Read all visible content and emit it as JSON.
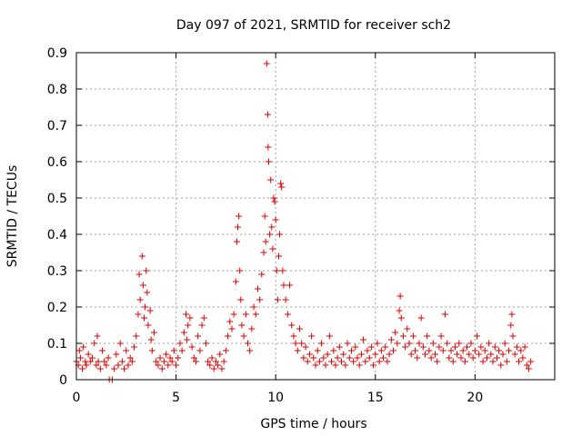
{
  "chart_data": {
    "type": "scatter",
    "title": "Day 097 of 2021, SRMTID for receiver sch2",
    "xlabel": "GPS time / hours",
    "ylabel": "SRMTID / TECUs",
    "xlim": [
      0,
      24
    ],
    "ylim": [
      0,
      0.9
    ],
    "xticks": [
      0,
      5,
      10,
      15,
      20
    ],
    "yticks": [
      0,
      0.1,
      0.2,
      0.3,
      0.4,
      0.5,
      0.6,
      0.7,
      0.8,
      0.9
    ],
    "grid": true,
    "marker": "+",
    "series": [
      {
        "name": "sch2",
        "color": "#e00000",
        "points": [
          [
            0.0,
            0.05
          ],
          [
            0.1,
            0.04
          ],
          [
            0.15,
            0.08
          ],
          [
            0.2,
            0.06
          ],
          [
            0.3,
            0.03
          ],
          [
            0.35,
            0.09
          ],
          [
            0.45,
            0.05
          ],
          [
            0.5,
            0.04
          ],
          [
            0.6,
            0.07
          ],
          [
            0.7,
            0.05
          ],
          [
            0.8,
            0.06
          ],
          [
            0.9,
            0.1
          ],
          [
            1.0,
            0.04
          ],
          [
            1.05,
            0.12
          ],
          [
            1.1,
            0.05
          ],
          [
            1.2,
            0.03
          ],
          [
            1.3,
            0.08
          ],
          [
            1.4,
            0.05
          ],
          [
            1.5,
            0.04
          ],
          [
            1.6,
            0.06
          ],
          [
            1.65,
            0.0
          ],
          [
            1.8,
            0.0
          ],
          [
            1.9,
            0.03
          ],
          [
            2.0,
            0.07
          ],
          [
            2.1,
            0.04
          ],
          [
            2.2,
            0.1
          ],
          [
            2.3,
            0.05
          ],
          [
            2.4,
            0.03
          ],
          [
            2.5,
            0.08
          ],
          [
            2.6,
            0.04
          ],
          [
            2.7,
            0.06
          ],
          [
            2.8,
            0.05
          ],
          [
            2.9,
            0.09
          ],
          [
            3.0,
            0.12
          ],
          [
            3.1,
            0.18
          ],
          [
            3.15,
            0.29
          ],
          [
            3.2,
            0.22
          ],
          [
            3.3,
            0.34
          ],
          [
            3.35,
            0.26
          ],
          [
            3.4,
            0.17
          ],
          [
            3.45,
            0.2
          ],
          [
            3.5,
            0.3
          ],
          [
            3.55,
            0.24
          ],
          [
            3.6,
            0.15
          ],
          [
            3.7,
            0.19
          ],
          [
            3.75,
            0.11
          ],
          [
            3.8,
            0.08
          ],
          [
            3.9,
            0.13
          ],
          [
            4.0,
            0.05
          ],
          [
            4.1,
            0.04
          ],
          [
            4.2,
            0.06
          ],
          [
            4.3,
            0.03
          ],
          [
            4.4,
            0.05
          ],
          [
            4.5,
            0.07
          ],
          [
            4.6,
            0.04
          ],
          [
            4.7,
            0.06
          ],
          [
            4.8,
            0.05
          ],
          [
            4.9,
            0.08
          ],
          [
            5.0,
            0.04
          ],
          [
            5.1,
            0.06
          ],
          [
            5.2,
            0.1
          ],
          [
            5.3,
            0.08
          ],
          [
            5.4,
            0.13
          ],
          [
            5.5,
            0.18
          ],
          [
            5.55,
            0.11
          ],
          [
            5.6,
            0.15
          ],
          [
            5.7,
            0.17
          ],
          [
            5.8,
            0.09
          ],
          [
            5.9,
            0.06
          ],
          [
            6.0,
            0.05
          ],
          [
            6.1,
            0.12
          ],
          [
            6.2,
            0.08
          ],
          [
            6.3,
            0.15
          ],
          [
            6.4,
            0.17
          ],
          [
            6.5,
            0.1
          ],
          [
            6.6,
            0.05
          ],
          [
            6.7,
            0.04
          ],
          [
            6.8,
            0.06
          ],
          [
            6.9,
            0.03
          ],
          [
            7.0,
            0.05
          ],
          [
            7.1,
            0.04
          ],
          [
            7.2,
            0.07
          ],
          [
            7.3,
            0.03
          ],
          [
            7.4,
            0.05
          ],
          [
            7.5,
            0.08
          ],
          [
            7.6,
            0.12
          ],
          [
            7.7,
            0.16
          ],
          [
            7.8,
            0.14
          ],
          [
            7.9,
            0.18
          ],
          [
            8.0,
            0.27
          ],
          [
            8.05,
            0.38
          ],
          [
            8.1,
            0.42
          ],
          [
            8.15,
            0.45
          ],
          [
            8.2,
            0.3
          ],
          [
            8.25,
            0.22
          ],
          [
            8.3,
            0.15
          ],
          [
            8.4,
            0.12
          ],
          [
            8.5,
            0.18
          ],
          [
            8.6,
            0.1
          ],
          [
            8.7,
            0.08
          ],
          [
            8.8,
            0.14
          ],
          [
            8.9,
            0.2
          ],
          [
            9.0,
            0.18
          ],
          [
            9.1,
            0.25
          ],
          [
            9.2,
            0.22
          ],
          [
            9.3,
            0.29
          ],
          [
            9.4,
            0.35
          ],
          [
            9.45,
            0.45
          ],
          [
            9.5,
            0.38
          ],
          [
            9.55,
            0.87
          ],
          [
            9.6,
            0.73
          ],
          [
            9.62,
            0.64
          ],
          [
            9.65,
            0.6
          ],
          [
            9.7,
            0.4
          ],
          [
            9.75,
            0.55
          ],
          [
            9.8,
            0.42
          ],
          [
            9.85,
            0.36
          ],
          [
            9.9,
            0.5
          ],
          [
            9.95,
            0.49
          ],
          [
            10.0,
            0.44
          ],
          [
            10.05,
            0.3
          ],
          [
            10.1,
            0.22
          ],
          [
            10.15,
            0.34
          ],
          [
            10.2,
            0.4
          ],
          [
            10.25,
            0.54
          ],
          [
            10.3,
            0.53
          ],
          [
            10.35,
            0.3
          ],
          [
            10.4,
            0.26
          ],
          [
            10.5,
            0.22
          ],
          [
            10.6,
            0.18
          ],
          [
            10.7,
            0.26
          ],
          [
            10.8,
            0.15
          ],
          [
            10.9,
            0.12
          ],
          [
            11.0,
            0.1
          ],
          [
            11.1,
            0.08
          ],
          [
            11.2,
            0.14
          ],
          [
            11.3,
            0.1
          ],
          [
            11.4,
            0.06
          ],
          [
            11.5,
            0.09
          ],
          [
            11.6,
            0.05
          ],
          [
            11.7,
            0.07
          ],
          [
            11.8,
            0.12
          ],
          [
            11.9,
            0.06
          ],
          [
            12.0,
            0.04
          ],
          [
            12.1,
            0.08
          ],
          [
            12.2,
            0.05
          ],
          [
            12.3,
            0.1
          ],
          [
            12.4,
            0.06
          ],
          [
            12.5,
            0.04
          ],
          [
            12.6,
            0.07
          ],
          [
            12.7,
            0.12
          ],
          [
            12.8,
            0.05
          ],
          [
            12.9,
            0.08
          ],
          [
            13.0,
            0.04
          ],
          [
            13.1,
            0.06
          ],
          [
            13.2,
            0.09
          ],
          [
            13.3,
            0.05
          ],
          [
            13.4,
            0.07
          ],
          [
            13.5,
            0.04
          ],
          [
            13.6,
            0.1
          ],
          [
            13.7,
            0.06
          ],
          [
            13.8,
            0.08
          ],
          [
            13.9,
            0.05
          ],
          [
            14.0,
            0.09
          ],
          [
            14.1,
            0.06
          ],
          [
            14.2,
            0.04
          ],
          [
            14.3,
            0.07
          ],
          [
            14.4,
            0.11
          ],
          [
            14.5,
            0.05
          ],
          [
            14.6,
            0.08
          ],
          [
            14.7,
            0.06
          ],
          [
            14.8,
            0.09
          ],
          [
            14.9,
            0.04
          ],
          [
            15.0,
            0.07
          ],
          [
            15.1,
            0.1
          ],
          [
            15.2,
            0.05
          ],
          [
            15.3,
            0.08
          ],
          [
            15.4,
            0.06
          ],
          [
            15.5,
            0.09
          ],
          [
            15.6,
            0.05
          ],
          [
            15.7,
            0.07
          ],
          [
            15.8,
            0.11
          ],
          [
            15.9,
            0.08
          ],
          [
            16.0,
            0.13
          ],
          [
            16.1,
            0.1
          ],
          [
            16.2,
            0.19
          ],
          [
            16.25,
            0.23
          ],
          [
            16.3,
            0.17
          ],
          [
            16.4,
            0.12
          ],
          [
            16.5,
            0.09
          ],
          [
            16.6,
            0.14
          ],
          [
            16.7,
            0.1
          ],
          [
            16.8,
            0.07
          ],
          [
            16.9,
            0.12
          ],
          [
            17.0,
            0.08
          ],
          [
            17.1,
            0.06
          ],
          [
            17.2,
            0.1
          ],
          [
            17.3,
            0.17
          ],
          [
            17.4,
            0.09
          ],
          [
            17.5,
            0.07
          ],
          [
            17.6,
            0.12
          ],
          [
            17.7,
            0.08
          ],
          [
            17.8,
            0.06
          ],
          [
            17.9,
            0.1
          ],
          [
            18.0,
            0.07
          ],
          [
            18.1,
            0.05
          ],
          [
            18.2,
            0.09
          ],
          [
            18.3,
            0.12
          ],
          [
            18.4,
            0.08
          ],
          [
            18.5,
            0.18
          ],
          [
            18.6,
            0.1
          ],
          [
            18.7,
            0.06
          ],
          [
            18.8,
            0.08
          ],
          [
            18.9,
            0.05
          ],
          [
            19.0,
            0.09
          ],
          [
            19.1,
            0.07
          ],
          [
            19.2,
            0.1
          ],
          [
            19.3,
            0.06
          ],
          [
            19.4,
            0.08
          ],
          [
            19.5,
            0.05
          ],
          [
            19.6,
            0.09
          ],
          [
            19.7,
            0.07
          ],
          [
            19.8,
            0.1
          ],
          [
            19.9,
            0.06
          ],
          [
            20.0,
            0.08
          ],
          [
            20.1,
            0.12
          ],
          [
            20.2,
            0.07
          ],
          [
            20.3,
            0.09
          ],
          [
            20.4,
            0.05
          ],
          [
            20.5,
            0.08
          ],
          [
            20.6,
            0.06
          ],
          [
            20.7,
            0.1
          ],
          [
            20.8,
            0.07
          ],
          [
            20.9,
            0.05
          ],
          [
            21.0,
            0.09
          ],
          [
            21.1,
            0.06
          ],
          [
            21.2,
            0.08
          ],
          [
            21.3,
            0.04
          ],
          [
            21.4,
            0.07
          ],
          [
            21.5,
            0.1
          ],
          [
            21.6,
            0.05
          ],
          [
            21.7,
            0.08
          ],
          [
            21.8,
            0.15
          ],
          [
            21.85,
            0.18
          ],
          [
            21.9,
            0.12
          ],
          [
            22.0,
            0.07
          ],
          [
            22.1,
            0.09
          ],
          [
            22.2,
            0.05
          ],
          [
            22.3,
            0.08
          ],
          [
            22.4,
            0.06
          ],
          [
            22.5,
            0.09
          ],
          [
            22.6,
            0.04
          ],
          [
            22.7,
            0.03
          ],
          [
            22.8,
            0.05
          ]
        ]
      }
    ]
  }
}
